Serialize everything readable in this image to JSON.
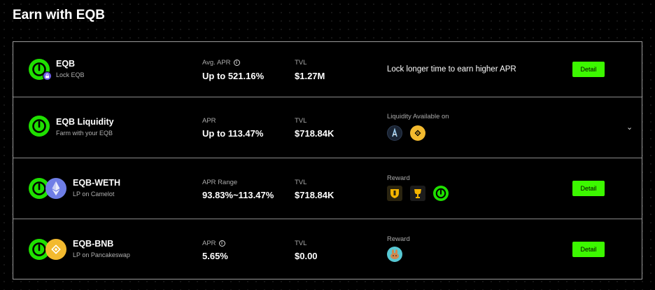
{
  "page": {
    "title": "Earn with EQB"
  },
  "colors": {
    "accent": "#3cf800",
    "eqb_green": "#1fe000",
    "eth": "#6f7ee6",
    "bnb": "#f3ba2f"
  },
  "pools": [
    {
      "name": "EQB",
      "subtitle": "Lock EQB",
      "apr_label": "Avg. APR",
      "apr_value": "Up to 521.16%",
      "tvl_label": "TVL",
      "tvl_value": "$1.27M",
      "promo_text": "Lock longer time to earn higher APR",
      "action_label": "Detail"
    },
    {
      "name": "EQB Liquidity",
      "subtitle": "Farm with your EQB",
      "apr_label": "APR",
      "apr_value": "Up to 113.47%",
      "tvl_label": "TVL",
      "tvl_value": "$718.84K",
      "extra_label": "Liquidity Available on",
      "chains": [
        "arbitrum-icon",
        "bnb-chain-icon"
      ]
    },
    {
      "name": "EQB-WETH",
      "subtitle": "LP on Camelot",
      "apr_label": "APR Range",
      "apr_value": "93.83%~113.47%",
      "tvl_label": "TVL",
      "tvl_value": "$718.84K",
      "extra_label": "Reward",
      "rewards": [
        "camelot-grail-icon",
        "camelot-xgrail-icon",
        "eqb-icon"
      ],
      "action_label": "Detail"
    },
    {
      "name": "EQB-BNB",
      "subtitle": "LP on Pancakeswap",
      "apr_label": "APR",
      "apr_value": "5.65%",
      "tvl_label": "TVL",
      "tvl_value": "$0.00",
      "extra_label": "Reward",
      "rewards": [
        "pancakeswap-cake-icon"
      ],
      "action_label": "Detail"
    }
  ]
}
